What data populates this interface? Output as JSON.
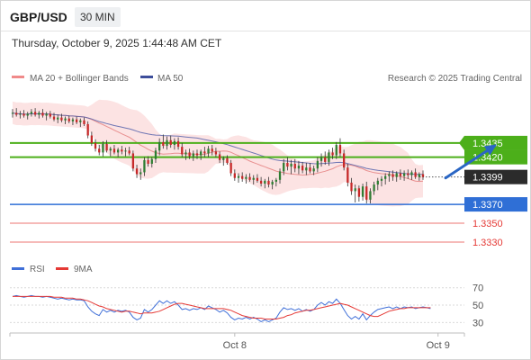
{
  "header": {
    "symbol": "GBP/USD",
    "interval": "30 MIN",
    "timestamp": "Thursday, October 9, 2025 1:44:48 AM CET"
  },
  "legend": {
    "ma20_label": "MA 20 + Bollinger Bands",
    "ma50_label": "MA 50",
    "copyright": "Research © 2025 Trading Central"
  },
  "colors": {
    "up": "#2e7d32",
    "down": "#c62828",
    "ma20": "#e88f8f",
    "ma50": "#4b5aa8",
    "band": "#fcdede",
    "resistance": "#4caf1a",
    "support": "#2f6fd6",
    "lowlevel": "#e53935",
    "rsi": "#3f6fd8",
    "rsi_ma": "#e53935",
    "arrow": "#2a66c4"
  },
  "chart_data": [
    {
      "type": "candlestick",
      "title": "GBP/USD 30 MIN",
      "ylim": [
        1.331,
        1.3495
      ],
      "x_ticks": [
        {
          "index": 59,
          "label": "Oct 8"
        },
        {
          "index": 113,
          "label": "Oct 9"
        }
      ],
      "last_price": 1.3399,
      "levels": [
        {
          "value": 1.3435,
          "kind": "resistance",
          "label": "1.3435"
        },
        {
          "value": 1.342,
          "kind": "resistance",
          "label": "1.3420"
        },
        {
          "value": 1.337,
          "kind": "support",
          "label": "1.3370"
        },
        {
          "value": 1.335,
          "kind": "low",
          "label": "1.3350"
        },
        {
          "value": 1.333,
          "kind": "low",
          "label": "1.3330"
        }
      ],
      "last_label": "1.3399",
      "forecast_arrow": {
        "from": [
          115,
          1.3398
        ],
        "to": [
          128,
          1.3432
        ]
      },
      "ohlc": [
        [
          1.3466,
          1.3471,
          1.3462,
          1.3467
        ],
        [
          1.3467,
          1.3472,
          1.3463,
          1.3465
        ],
        [
          1.3465,
          1.3469,
          1.3461,
          1.3466
        ],
        [
          1.3466,
          1.347,
          1.3462,
          1.3464
        ],
        [
          1.3464,
          1.3468,
          1.346,
          1.3466
        ],
        [
          1.3466,
          1.3471,
          1.3463,
          1.3468
        ],
        [
          1.3468,
          1.3472,
          1.3463,
          1.3465
        ],
        [
          1.3465,
          1.3469,
          1.3461,
          1.3467
        ],
        [
          1.3467,
          1.3471,
          1.3462,
          1.3464
        ],
        [
          1.3464,
          1.3468,
          1.3459,
          1.3466
        ],
        [
          1.3466,
          1.3469,
          1.3461,
          1.3463
        ],
        [
          1.3463,
          1.3467,
          1.3458,
          1.346
        ],
        [
          1.346,
          1.3465,
          1.3456,
          1.3462
        ],
        [
          1.3462,
          1.3466,
          1.3457,
          1.3459
        ],
        [
          1.3459,
          1.3463,
          1.3455,
          1.3461
        ],
        [
          1.3461,
          1.3464,
          1.3456,
          1.3458
        ],
        [
          1.3458,
          1.3462,
          1.3454,
          1.346
        ],
        [
          1.346,
          1.3463,
          1.3455,
          1.3457
        ],
        [
          1.3457,
          1.3461,
          1.3452,
          1.3459
        ],
        [
          1.3459,
          1.3462,
          1.3453,
          1.3455
        ],
        [
          1.3455,
          1.3458,
          1.344,
          1.3443
        ],
        [
          1.3443,
          1.3447,
          1.3432,
          1.3435
        ],
        [
          1.3435,
          1.3439,
          1.3426,
          1.3429
        ],
        [
          1.3429,
          1.3433,
          1.3422,
          1.3425
        ],
        [
          1.3425,
          1.3437,
          1.3421,
          1.3434
        ],
        [
          1.3434,
          1.3438,
          1.3425,
          1.3427
        ],
        [
          1.3427,
          1.3431,
          1.3421,
          1.3429
        ],
        [
          1.3429,
          1.3433,
          1.3423,
          1.3425
        ],
        [
          1.3425,
          1.343,
          1.342,
          1.3428
        ],
        [
          1.3428,
          1.3432,
          1.3423,
          1.3426
        ],
        [
          1.3426,
          1.343,
          1.3421,
          1.3427
        ],
        [
          1.3427,
          1.3431,
          1.3422,
          1.3424
        ],
        [
          1.3424,
          1.3427,
          1.3405,
          1.3408
        ],
        [
          1.3408,
          1.3412,
          1.3398,
          1.3402
        ],
        [
          1.3402,
          1.3408,
          1.3396,
          1.3404
        ],
        [
          1.3404,
          1.342,
          1.34,
          1.3417
        ],
        [
          1.3417,
          1.3421,
          1.341,
          1.3413
        ],
        [
          1.3413,
          1.342,
          1.3409,
          1.3418
        ],
        [
          1.3418,
          1.343,
          1.3414,
          1.3427
        ],
        [
          1.3427,
          1.344,
          1.3422,
          1.3436
        ],
        [
          1.3436,
          1.3444,
          1.3429,
          1.3432
        ],
        [
          1.3432,
          1.3442,
          1.3428,
          1.3438
        ],
        [
          1.3438,
          1.3443,
          1.343,
          1.3433
        ],
        [
          1.3433,
          1.344,
          1.3428,
          1.3437
        ],
        [
          1.3437,
          1.3441,
          1.3428,
          1.3431
        ],
        [
          1.3431,
          1.3435,
          1.342,
          1.3423
        ],
        [
          1.3423,
          1.3428,
          1.3417,
          1.3425
        ],
        [
          1.3425,
          1.3429,
          1.3418,
          1.3421
        ],
        [
          1.3421,
          1.3427,
          1.3416,
          1.3424
        ],
        [
          1.3424,
          1.3428,
          1.3418,
          1.3422
        ],
        [
          1.3422,
          1.3428,
          1.3417,
          1.3426
        ],
        [
          1.3426,
          1.3431,
          1.342,
          1.3424
        ],
        [
          1.3424,
          1.3432,
          1.342,
          1.3429
        ],
        [
          1.3429,
          1.3433,
          1.3422,
          1.3426
        ],
        [
          1.3426,
          1.343,
          1.342,
          1.3423
        ],
        [
          1.3423,
          1.3426,
          1.3414,
          1.3417
        ],
        [
          1.3417,
          1.3421,
          1.3411,
          1.3419
        ],
        [
          1.3419,
          1.3422,
          1.3412,
          1.3414
        ],
        [
          1.3414,
          1.3417,
          1.34,
          1.3403
        ],
        [
          1.3403,
          1.3407,
          1.3395,
          1.3398
        ],
        [
          1.3398,
          1.3403,
          1.3393,
          1.34
        ],
        [
          1.34,
          1.3404,
          1.3394,
          1.3397
        ],
        [
          1.3397,
          1.3402,
          1.3392,
          1.3399
        ],
        [
          1.3399,
          1.3403,
          1.3394,
          1.3396
        ],
        [
          1.3396,
          1.3401,
          1.3391,
          1.3398
        ],
        [
          1.3398,
          1.3402,
          1.3393,
          1.3395
        ],
        [
          1.3395,
          1.3399,
          1.3389,
          1.3392
        ],
        [
          1.3392,
          1.3397,
          1.3387,
          1.3395
        ],
        [
          1.3395,
          1.3399,
          1.3388,
          1.3391
        ],
        [
          1.3391,
          1.3396,
          1.3386,
          1.3394
        ],
        [
          1.3394,
          1.3398,
          1.3389,
          1.3396
        ],
        [
          1.3396,
          1.3408,
          1.3392,
          1.3405
        ],
        [
          1.3405,
          1.3418,
          1.3401,
          1.3414
        ],
        [
          1.3414,
          1.342,
          1.3406,
          1.341
        ],
        [
          1.341,
          1.3417,
          1.3402,
          1.3413
        ],
        [
          1.3413,
          1.3418,
          1.3404,
          1.3408
        ],
        [
          1.3408,
          1.3416,
          1.3402,
          1.3411
        ],
        [
          1.3411,
          1.3415,
          1.3403,
          1.3406
        ],
        [
          1.3406,
          1.3414,
          1.3401,
          1.3409
        ],
        [
          1.3409,
          1.3414,
          1.3403,
          1.3405
        ],
        [
          1.3405,
          1.3411,
          1.3401,
          1.3408
        ],
        [
          1.3408,
          1.342,
          1.3404,
          1.3416
        ],
        [
          1.3416,
          1.3424,
          1.341,
          1.342
        ],
        [
          1.342,
          1.3426,
          1.3412,
          1.3415
        ],
        [
          1.3415,
          1.3428,
          1.3411,
          1.3425
        ],
        [
          1.3425,
          1.343,
          1.3418,
          1.3422
        ],
        [
          1.3422,
          1.3436,
          1.3418,
          1.3433
        ],
        [
          1.3433,
          1.344,
          1.342,
          1.3424
        ],
        [
          1.3424,
          1.3428,
          1.3406,
          1.3409
        ],
        [
          1.3409,
          1.3413,
          1.3389,
          1.3393
        ],
        [
          1.3393,
          1.3398,
          1.338,
          1.3384
        ],
        [
          1.3384,
          1.3391,
          1.3372,
          1.3387
        ],
        [
          1.3387,
          1.339,
          1.3373,
          1.3378
        ],
        [
          1.3378,
          1.3392,
          1.3374,
          1.3389
        ],
        [
          1.3389,
          1.3394,
          1.3371,
          1.3375
        ],
        [
          1.3375,
          1.3387,
          1.3371,
          1.3384
        ],
        [
          1.3384,
          1.3394,
          1.338,
          1.3391
        ],
        [
          1.3391,
          1.3398,
          1.3385,
          1.3395
        ],
        [
          1.3395,
          1.34,
          1.3389,
          1.3397
        ],
        [
          1.3397,
          1.3403,
          1.3391,
          1.34
        ],
        [
          1.34,
          1.3405,
          1.3394,
          1.3402
        ],
        [
          1.3402,
          1.3406,
          1.3395,
          1.3399
        ],
        [
          1.3399,
          1.3405,
          1.3394,
          1.3403
        ],
        [
          1.3403,
          1.3407,
          1.3396,
          1.34
        ],
        [
          1.34,
          1.3406,
          1.3395,
          1.3403
        ],
        [
          1.3403,
          1.3407,
          1.3397,
          1.3401
        ],
        [
          1.3401,
          1.3406,
          1.3396,
          1.3404
        ],
        [
          1.3404,
          1.3408,
          1.3397,
          1.3399
        ],
        [
          1.3399,
          1.3404,
          1.3395,
          1.3402
        ],
        [
          1.3402,
          1.3406,
          1.3396,
          1.3399
        ]
      ]
    },
    {
      "type": "line",
      "title": "RSI",
      "ylim": [
        20,
        78
      ],
      "y_ticks": [
        70,
        50,
        30
      ],
      "series": [
        {
          "name": "RSI",
          "values": [
            60,
            61,
            60,
            59,
            60,
            61,
            60,
            60,
            59,
            60,
            59,
            58,
            57,
            58,
            57,
            56,
            57,
            56,
            56,
            55,
            48,
            43,
            40,
            38,
            45,
            42,
            44,
            42,
            44,
            43,
            44,
            42,
            36,
            33,
            35,
            45,
            42,
            45,
            50,
            55,
            52,
            55,
            52,
            54,
            50,
            45,
            46,
            44,
            46,
            45,
            47,
            45,
            49,
            47,
            45,
            42,
            44,
            41,
            36,
            33,
            35,
            34,
            36,
            34,
            36,
            34,
            31,
            33,
            31,
            33,
            35,
            42,
            47,
            45,
            46,
            44,
            46,
            43,
            45,
            43,
            45,
            50,
            53,
            50,
            54,
            52,
            57,
            52,
            45,
            38,
            34,
            37,
            34,
            40,
            33,
            38,
            42,
            45,
            46,
            47,
            48,
            46,
            48,
            46,
            48,
            47,
            48,
            46,
            47,
            48,
            47,
            46
          ]
        },
        {
          "name": "9MA",
          "values": [
            60,
            60,
            60,
            60,
            60,
            60,
            60,
            60,
            60,
            60,
            60,
            59,
            59,
            59,
            58,
            58,
            58,
            57,
            57,
            56,
            55,
            53,
            51,
            49,
            48,
            46,
            45,
            44,
            43,
            42,
            43,
            43,
            42,
            41,
            40,
            41,
            41,
            41,
            42,
            43,
            45,
            47,
            49,
            51,
            52,
            52,
            51,
            50,
            49,
            48,
            47,
            46,
            46,
            46,
            46,
            46,
            46,
            45,
            44,
            42,
            40,
            38,
            37,
            36,
            35,
            35,
            35,
            34,
            34,
            34,
            34,
            35,
            36,
            38,
            39,
            41,
            42,
            43,
            44,
            44,
            45,
            46,
            47,
            48,
            49,
            50,
            51,
            52,
            51,
            50,
            48,
            46,
            44,
            42,
            40,
            38,
            37,
            37,
            39,
            41,
            43,
            44,
            45,
            46,
            46,
            47,
            47,
            47,
            47,
            47,
            47,
            47
          ]
        }
      ]
    }
  ]
}
